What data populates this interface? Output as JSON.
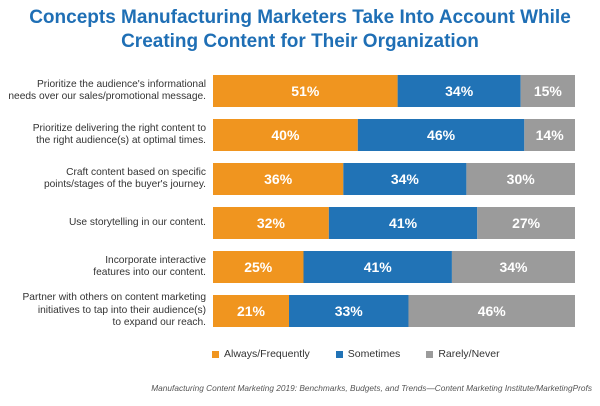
{
  "title_lines": [
    "Concepts Manufacturing Marketers Take Into Account While",
    "Creating Content for Their Organization"
  ],
  "colors": {
    "Always/Frequently": "#f0951f",
    "Sometimes": "#2173b6",
    "Rarely/Never": "#9b9b9b",
    "title": "#1f6fb5"
  },
  "chart_data": {
    "type": "bar",
    "orientation": "horizontal",
    "stacked": true,
    "title": "Concepts Manufacturing Marketers Take Into Account While Creating Content for Their Organization",
    "categories": [
      [
        "Prioritize the audience's informational",
        "needs over our sales/promotional message."
      ],
      [
        "Prioritize delivering the right content to",
        "the right audience(s) at optimal times."
      ],
      [
        "Craft content based on specific",
        "points/stages of the buyer's journey."
      ],
      [
        "Use storytelling in our content."
      ],
      [
        "Incorporate interactive",
        "features into our content."
      ],
      [
        "Partner with others on content marketing",
        "initiatives to tap into their audience(s)",
        "to expand our reach."
      ]
    ],
    "series": [
      {
        "name": "Always/Frequently",
        "values": [
          51,
          40,
          36,
          32,
          25,
          21
        ]
      },
      {
        "name": "Sometimes",
        "values": [
          34,
          46,
          34,
          41,
          41,
          33
        ]
      },
      {
        "name": "Rarely/Never",
        "values": [
          15,
          14,
          30,
          27,
          34,
          46
        ]
      }
    ],
    "value_suffix": "%",
    "xlim": [
      0,
      100
    ],
    "grid": false,
    "legend_position": "bottom"
  },
  "source": "Manufacturing Content Marketing 2019: Benchmarks, Budgets, and Trends—Content Marketing Institute/MarketingProfs"
}
